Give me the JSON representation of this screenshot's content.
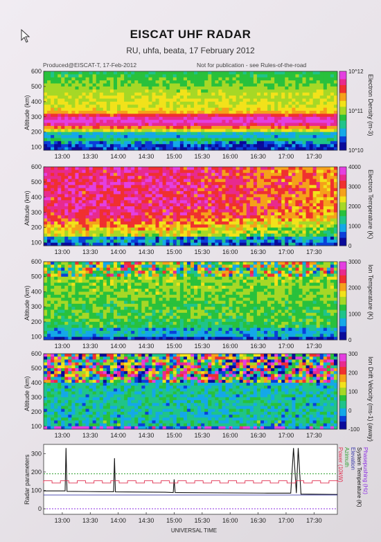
{
  "header": {
    "title": "EISCAT UHF RADAR",
    "subtitle": "RU, uhfa, beata, 17 February 2012",
    "produced": "Produced@EISCAT-T, 17-Feb-2012",
    "notice": "Not for publication - see Rules-of-the-road"
  },
  "x_axis": {
    "label": "UNIVERSAL TIME",
    "ticks": [
      "13:00",
      "13:30",
      "14:00",
      "14:30",
      "15:00",
      "15:30",
      "16:00",
      "16:30",
      "17:00",
      "17:30"
    ]
  },
  "colormap": [
    "#0a0a9a",
    "#0b3fd9",
    "#14a8e8",
    "#1fc48a",
    "#28c13c",
    "#a6d826",
    "#f2e21a",
    "#f5a11a",
    "#f0302f",
    "#e82a8e",
    "#e43fe0"
  ],
  "chart_data": [
    {
      "type": "heatmap",
      "name": "density",
      "ylabel": "Altitude (km)",
      "yticks": [
        "600",
        "500",
        "400",
        "300",
        "200",
        "100"
      ],
      "ylim": [
        80,
        600
      ],
      "xlim": [
        "12:40",
        "17:55"
      ],
      "colorbar_label": "Electron Density (m-3)",
      "colorbar_ticks": [
        "10^12",
        "10^11",
        "10^10"
      ],
      "colorbar_scale": "log",
      "clim": [
        10000000000.0,
        1000000000000.0
      ],
      "features": [
        {
          "altitude_km": 270,
          "relative_level": 0.85
        },
        {
          "altitude_km": 180,
          "relative_level": 0.2
        }
      ]
    },
    {
      "type": "heatmap",
      "name": "electron-temp",
      "ylabel": "Altitude (km)",
      "yticks": [
        "600",
        "500",
        "400",
        "300",
        "200",
        "100"
      ],
      "ylim": [
        80,
        600
      ],
      "colorbar_label": "Electron Temperature (K)",
      "colorbar_ticks": [
        "4000",
        "3000",
        "2000",
        "1000",
        "0"
      ],
      "clim": [
        0,
        4000
      ]
    },
    {
      "type": "heatmap",
      "name": "ion-temp",
      "ylabel": "Altitude (km)",
      "yticks": [
        "600",
        "500",
        "400",
        "300",
        "200",
        "100"
      ],
      "ylim": [
        80,
        600
      ],
      "colorbar_label": "Ion Temperature (K)",
      "colorbar_ticks": [
        "3000",
        "2000",
        "1000",
        "0"
      ],
      "clim": [
        0,
        3000
      ]
    },
    {
      "type": "heatmap",
      "name": "ion-drift",
      "ylabel": "Altitude (km)",
      "yticks": [
        "600",
        "500",
        "400",
        "300",
        "200",
        "100"
      ],
      "ylim": [
        80,
        600
      ],
      "colorbar_label": "Ion Drift Velocity (ms-1) (away)",
      "colorbar_ticks": [
        "300",
        "200",
        "100",
        "0",
        "-100"
      ],
      "clim": [
        -100,
        300
      ]
    },
    {
      "type": "line",
      "name": "radar-params",
      "ylabel": "Radar parameters",
      "ylim": [
        -30,
        350
      ],
      "yticks": [
        "300",
        "200",
        "100",
        "0"
      ],
      "legend": [
        {
          "label": "Phasepushing (Hz)",
          "color": "#8a2be2"
        },
        {
          "label": "System Temperature (K)",
          "color": "#111111"
        },
        {
          "label": "Elevation",
          "color": "#3a3aa8"
        },
        {
          "label": "Azimuth",
          "color": "#33a033"
        },
        {
          "label": "Power (10kW)",
          "color": "#e03050"
        }
      ],
      "series": [
        {
          "name": "System Temperature (K)",
          "x": [
            "12:40",
            "13:03",
            "13:04",
            "13:05",
            "13:40",
            "13:55",
            "13:56",
            "13:57",
            "14:50",
            "14:59",
            "15:00",
            "15:01",
            "16:40",
            "17:05",
            "17:08",
            "17:11",
            "17:13",
            "17:16",
            "17:55"
          ],
          "y": [
            97,
            97,
            330,
            95,
            93,
            93,
            275,
            92,
            90,
            88,
            160,
            88,
            85,
            85,
            330,
            85,
            330,
            80,
            78
          ]
        },
        {
          "name": "Power (10kW)",
          "pattern": "square-wave",
          "y_low": 140,
          "y_high": 152
        },
        {
          "name": "Azimuth",
          "y": 190
        },
        {
          "name": "Elevation",
          "y": 75
        },
        {
          "name": "Phasepushing (Hz)",
          "y": 0
        }
      ]
    }
  ]
}
